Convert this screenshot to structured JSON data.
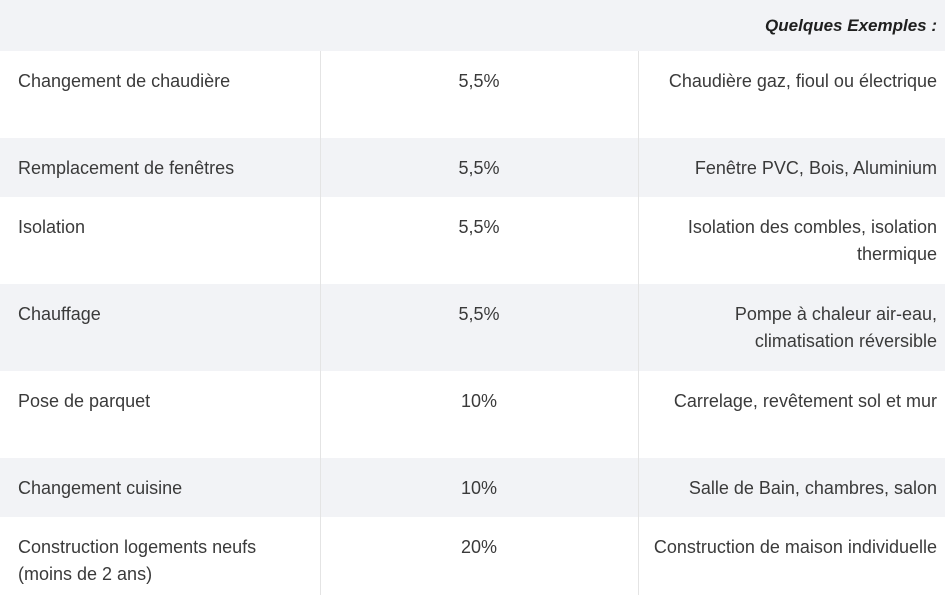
{
  "table": {
    "header": {
      "examples_label": "Quelques Exemples :"
    },
    "rows": [
      {
        "work": "Changement de chaudière",
        "rate": "5,5%",
        "example": "Chaudière gaz, fioul ou électrique"
      },
      {
        "work": "Remplacement de fenêtres",
        "rate": "5,5%",
        "example": "Fenêtre PVC, Bois, Aluminium"
      },
      {
        "work": "Isolation",
        "rate": "5,5%",
        "example": "Isolation des combles, isolation thermique"
      },
      {
        "work": "Chauffage",
        "rate": "5,5%",
        "example": "Pompe à chaleur air-eau, climatisation réversible"
      },
      {
        "work": "Pose de parquet",
        "rate": "10%",
        "example": "Carrelage, revêtement sol et mur"
      },
      {
        "work": "Changement cuisine",
        "rate": "10%",
        "example": "Salle de Bain, chambres, salon"
      },
      {
        "work": "Construction logements neufs (moins de 2 ans)",
        "rate": "20%",
        "example": "Construction de maison individuelle"
      }
    ]
  },
  "colors": {
    "stripe": "#f2f3f6",
    "text": "#3a3a3a",
    "header_text": "#1f1f1f"
  }
}
